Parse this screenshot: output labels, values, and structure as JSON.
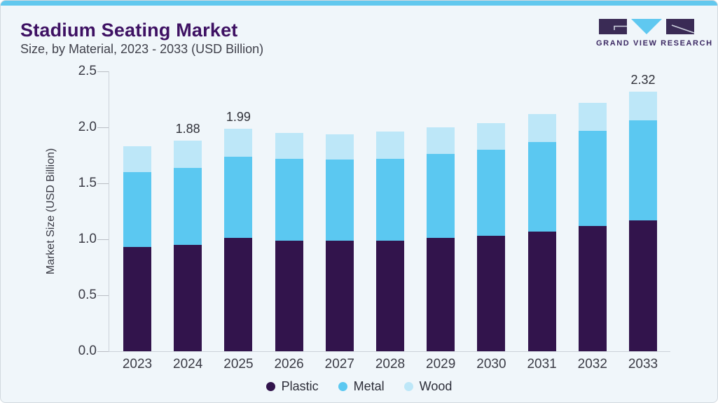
{
  "header": {
    "title": "Stadium Seating Market",
    "subtitle": "Size, by Material, 2023 - 2033 (USD Billion)",
    "logo_text": "GRAND VIEW RESEARCH"
  },
  "chart_data": {
    "type": "bar",
    "stacked": true,
    "title": "Stadium Seating Market",
    "subtitle": "Size, by Material, 2023 - 2033 (USD Billion)",
    "xlabel": "",
    "ylabel": "Market Size (USD Billion)",
    "ylim": [
      0,
      2.5
    ],
    "yticks": [
      0.0,
      0.5,
      1.0,
      1.5,
      2.0,
      2.5
    ],
    "ytick_labels": [
      "0.0",
      "0.5",
      "1.0",
      "1.5",
      "2.0",
      "2.5"
    ],
    "grid": false,
    "legend_position": "bottom",
    "categories": [
      "2023",
      "2024",
      "2025",
      "2026",
      "2027",
      "2028",
      "2029",
      "2030",
      "2031",
      "2032",
      "2033"
    ],
    "series": [
      {
        "name": "Plastic",
        "color": "#32144c",
        "values": [
          0.93,
          0.95,
          1.01,
          0.99,
          0.99,
          0.99,
          1.01,
          1.03,
          1.07,
          1.12,
          1.17
        ]
      },
      {
        "name": "Metal",
        "color": "#5bc8f1",
        "values": [
          0.67,
          0.69,
          0.73,
          0.73,
          0.72,
          0.73,
          0.75,
          0.77,
          0.8,
          0.85,
          0.89
        ]
      },
      {
        "name": "Wood",
        "color": "#bde7f8",
        "values": [
          0.23,
          0.24,
          0.25,
          0.23,
          0.23,
          0.24,
          0.24,
          0.24,
          0.25,
          0.25,
          0.26
        ]
      }
    ],
    "totals": [
      1.83,
      1.88,
      1.99,
      1.95,
      1.94,
      1.96,
      2.0,
      2.04,
      2.12,
      2.22,
      2.32
    ],
    "bar_labels": [
      null,
      "1.88",
      "1.99",
      null,
      null,
      null,
      null,
      null,
      null,
      null,
      "2.32"
    ]
  },
  "colors": {
    "card_background": "#f0f6fa",
    "top_stripe": "#62c8ee",
    "title_text": "#3e1163",
    "subtitle_text": "#40414b",
    "axis_text": "#3a3b45",
    "axis_line": "#ccd2d9",
    "logo_purple": "#3a2b55",
    "logo_blue": "#5fc8f0"
  }
}
